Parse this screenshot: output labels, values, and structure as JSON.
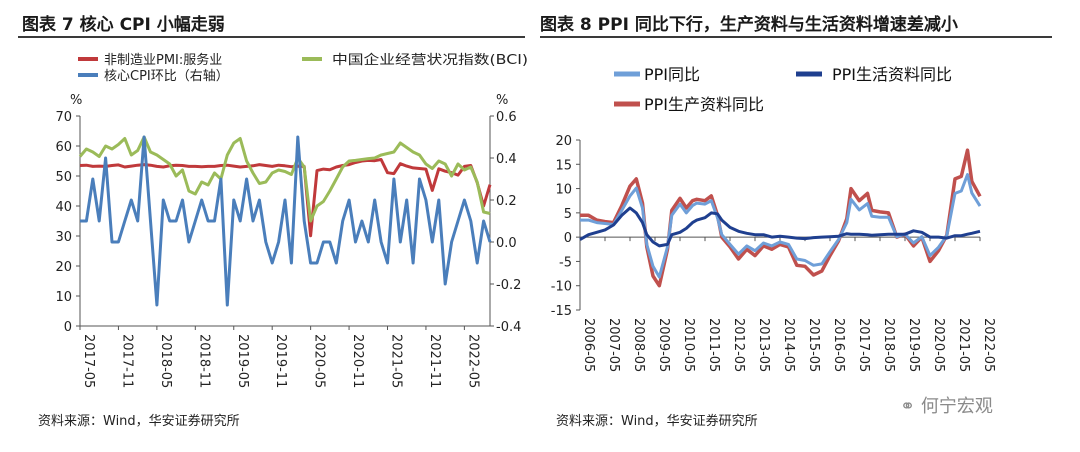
{
  "left_title": "图表 7  核心 CPI 小幅走弱",
  "right_title": "图表 8 PPI 同比下行，生产资料与生活资料增速差减小",
  "left_source": "资料来源：Wind，华安证券研究所",
  "right_source": "资料来源：Wind，华安证券研究所",
  "watermark": "何宁宏观",
  "chart_data": [
    {
      "type": "line",
      "title": "核心 CPI 小幅走弱",
      "left_unit": "%",
      "right_unit": "%",
      "ylim_left": [
        0,
        70
      ],
      "yticks_left": [
        "0",
        "10",
        "20",
        "30",
        "40",
        "50",
        "60",
        "70"
      ],
      "ylim_right": [
        -0.4,
        0.6
      ],
      "yticks_right": [
        "-0.4",
        "-0.2",
        "0.0",
        "0.2",
        "0.4",
        "0.6"
      ],
      "xticks": [
        "2017-05",
        "2017-11",
        "2018-05",
        "2018-11",
        "2019-05",
        "2019-11",
        "2020-05",
        "2020-11",
        "2021-05",
        "2021-11",
        "2022-05"
      ],
      "colors": {
        "pmi": "#c0393b",
        "bci": "#9bbb59",
        "core": "#4a7ebb"
      },
      "series": [
        {
          "key": "pmi",
          "name": "非制造业PMI:服务业",
          "axis": "left",
          "values": [
            53.5,
            53.6,
            53.2,
            53.3,
            53.2,
            53.5,
            53.7,
            53.0,
            53.3,
            53.6,
            53.8,
            53.6,
            53.2,
            53.0,
            53.4,
            53.6,
            53.5,
            53.2,
            53.2,
            53.1,
            53.2,
            53.2,
            53.5,
            53.6,
            53.3,
            53.0,
            53.2,
            53.4,
            53.8,
            53.5,
            53.2,
            53.6,
            53.4,
            53.1,
            53.3,
            53.2,
            30.1,
            51.8,
            52.3,
            52.1,
            53.0,
            53.5,
            53.8,
            54.5,
            55.0,
            55.2,
            55.1,
            55.5,
            51.1,
            50.8,
            54.1,
            53.3,
            52.7,
            52.5,
            52.3,
            45.2,
            52.4,
            51.6,
            51.1,
            50.3,
            53.2,
            53.5,
            47.8,
            40.0,
            47.1
          ]
        },
        {
          "key": "bci",
          "name": "中国企业经营状况指数(BCI)",
          "axis": "left",
          "values": [
            56.5,
            59.0,
            58.0,
            56.5,
            60.0,
            59.0,
            60.5,
            62.5,
            57.0,
            58.5,
            63.0,
            58.0,
            57.0,
            55.5,
            54.0,
            50.0,
            52.0,
            45.0,
            44.0,
            48.0,
            47.0,
            51.0,
            49.0,
            57.0,
            61.0,
            62.5,
            55.0,
            51.0,
            47.5,
            48.0,
            51.0,
            52.0,
            51.5,
            50.5,
            56.0,
            53.0,
            35.0,
            40.0,
            41.5,
            45.0,
            49.0,
            53.0,
            55.0,
            55.2,
            55.5,
            55.8,
            56.0,
            57.0,
            57.5,
            58.0,
            61.0,
            59.5,
            58.0,
            57.0,
            54.0,
            52.5,
            55.0,
            54.0,
            50.0,
            54.0,
            52.0,
            53.0,
            48.0,
            38.0,
            37.5
          ]
        },
        {
          "key": "core",
          "name": "核心CPI环比（右轴）",
          "axis": "right",
          "values": [
            0.1,
            0.1,
            0.3,
            0.1,
            0.4,
            0.0,
            0.0,
            0.1,
            0.2,
            0.1,
            0.5,
            0.1,
            -0.3,
            0.2,
            0.1,
            0.1,
            0.2,
            0.0,
            0.1,
            0.2,
            0.1,
            0.1,
            0.3,
            -0.3,
            0.2,
            0.1,
            0.3,
            0.1,
            0.2,
            0.0,
            -0.1,
            0.0,
            0.2,
            -0.1,
            0.5,
            0.1,
            -0.1,
            -0.1,
            0.0,
            0.0,
            -0.1,
            0.1,
            0.2,
            0.0,
            0.1,
            0.0,
            0.2,
            0.0,
            -0.1,
            0.3,
            0.0,
            0.2,
            -0.1,
            0.3,
            0.2,
            0.0,
            0.2,
            -0.2,
            0.0,
            0.1,
            0.2,
            0.1,
            -0.1,
            0.1,
            0.0
          ]
        }
      ]
    },
    {
      "type": "line",
      "title": "PPI 同比下行，生产资料与生活资料增速差减小",
      "ylim": [
        -15,
        20
      ],
      "yticks": [
        "-15",
        "-10",
        "-5",
        "0",
        "5",
        "10",
        "15",
        "20"
      ],
      "xticks": [
        "2006-05",
        "2007-05",
        "2008-05",
        "2009-05",
        "2010-05",
        "2011-05",
        "2012-05",
        "2013-05",
        "2014-05",
        "2015-05",
        "2016-05",
        "2017-05",
        "2018-05",
        "2019-05",
        "2020-05",
        "2021-05",
        "2022-05"
      ],
      "x_range": [
        2006.33,
        2022.33
      ],
      "colors": {
        "ppi": "#6f9fd8",
        "life": "#1f3f8f",
        "prod": "#c0504d"
      },
      "series": [
        {
          "key": "ppi",
          "name": "PPI同比",
          "x": [
            2006.33,
            2006.67,
            2007.0,
            2007.33,
            2007.67,
            2008.0,
            2008.33,
            2008.58,
            2008.83,
            2009.0,
            2009.25,
            2009.5,
            2009.83,
            2010.0,
            2010.33,
            2010.58,
            2010.83,
            2011.0,
            2011.33,
            2011.58,
            2011.83,
            2012.0,
            2012.33,
            2012.67,
            2013.0,
            2013.33,
            2013.67,
            2014.0,
            2014.33,
            2014.67,
            2015.0,
            2015.33,
            2015.67,
            2016.0,
            2016.33,
            2016.67,
            2017.0,
            2017.17,
            2017.5,
            2017.83,
            2018.0,
            2018.33,
            2018.67,
            2019.0,
            2019.33,
            2019.67,
            2020.0,
            2020.33,
            2020.67,
            2021.0,
            2021.33,
            2021.58,
            2021.83,
            2022.0,
            2022.33
          ],
          "values": [
            3.5,
            3.5,
            3.0,
            2.8,
            2.6,
            5.5,
            8.5,
            10.1,
            6.0,
            -1.5,
            -6.0,
            -8.2,
            -2.0,
            4.5,
            6.8,
            5.0,
            6.5,
            7.0,
            6.8,
            7.5,
            4.0,
            0.5,
            -1.5,
            -3.5,
            -1.8,
            -2.8,
            -1.2,
            -1.8,
            -1.0,
            -1.5,
            -4.5,
            -4.8,
            -5.8,
            -5.5,
            -3.0,
            -0.5,
            3.0,
            7.8,
            5.6,
            6.9,
            4.3,
            4.1,
            4.1,
            0.1,
            0.6,
            -1.2,
            0.1,
            -3.8,
            -2.1,
            0.3,
            9.0,
            9.5,
            12.9,
            9.1,
            6.4
          ]
        },
        {
          "key": "prod",
          "name": "PPI生产资料同比",
          "x": [
            2006.33,
            2006.67,
            2007.0,
            2007.33,
            2007.67,
            2008.0,
            2008.33,
            2008.58,
            2008.83,
            2009.0,
            2009.25,
            2009.5,
            2009.83,
            2010.0,
            2010.33,
            2010.58,
            2010.83,
            2011.0,
            2011.33,
            2011.58,
            2011.83,
            2012.0,
            2012.33,
            2012.67,
            2013.0,
            2013.33,
            2013.67,
            2014.0,
            2014.33,
            2014.67,
            2015.0,
            2015.33,
            2015.67,
            2016.0,
            2016.33,
            2016.67,
            2017.0,
            2017.17,
            2017.5,
            2017.83,
            2018.0,
            2018.33,
            2018.67,
            2019.0,
            2019.33,
            2019.67,
            2020.0,
            2020.33,
            2020.67,
            2021.0,
            2021.33,
            2021.58,
            2021.83,
            2022.0,
            2022.33
          ],
          "values": [
            4.5,
            4.5,
            3.5,
            3.2,
            3.0,
            6.5,
            10.5,
            12.0,
            7.0,
            -2.0,
            -8.0,
            -10.0,
            -2.5,
            5.5,
            8.0,
            6.0,
            7.5,
            7.8,
            7.5,
            8.5,
            4.5,
            0.0,
            -2.0,
            -4.5,
            -2.5,
            -3.8,
            -1.8,
            -2.5,
            -1.5,
            -2.0,
            -5.8,
            -6.0,
            -7.8,
            -7.0,
            -3.8,
            -0.8,
            3.8,
            10.0,
            7.5,
            9.0,
            5.5,
            5.2,
            5.0,
            0.0,
            0.6,
            -1.8,
            0.0,
            -5.0,
            -2.8,
            0.4,
            12.0,
            12.5,
            17.9,
            11.5,
            8.4
          ]
        },
        {
          "key": "life",
          "name": "PPI生活资料同比",
          "x": [
            2006.33,
            2006.67,
            2007.0,
            2007.33,
            2007.67,
            2008.0,
            2008.33,
            2008.58,
            2008.83,
            2009.0,
            2009.25,
            2009.5,
            2009.83,
            2010.0,
            2010.33,
            2010.58,
            2010.83,
            2011.0,
            2011.33,
            2011.58,
            2011.83,
            2012.0,
            2012.33,
            2012.67,
            2013.0,
            2013.33,
            2013.67,
            2014.0,
            2014.33,
            2014.67,
            2015.0,
            2015.33,
            2015.67,
            2016.0,
            2016.33,
            2016.67,
            2017.0,
            2017.17,
            2017.5,
            2017.83,
            2018.0,
            2018.33,
            2018.67,
            2019.0,
            2019.33,
            2019.67,
            2020.0,
            2020.33,
            2020.67,
            2021.0,
            2021.33,
            2021.58,
            2021.83,
            2022.0,
            2022.33
          ],
          "values": [
            -0.5,
            0.5,
            1.0,
            1.5,
            2.5,
            4.5,
            6.0,
            5.0,
            3.0,
            0.5,
            -1.0,
            -1.8,
            -1.5,
            0.5,
            1.0,
            1.8,
            3.0,
            3.5,
            4.0,
            5.0,
            4.8,
            3.5,
            2.0,
            1.2,
            0.8,
            0.5,
            0.5,
            0.0,
            0.2,
            0.0,
            -0.2,
            -0.3,
            -0.1,
            0.0,
            0.1,
            0.2,
            0.7,
            0.6,
            0.6,
            0.5,
            0.4,
            0.5,
            0.6,
            0.6,
            0.6,
            1.3,
            1.0,
            0.0,
            0.0,
            -0.2,
            0.3,
            0.3,
            0.6,
            0.8,
            1.2
          ]
        }
      ]
    }
  ]
}
